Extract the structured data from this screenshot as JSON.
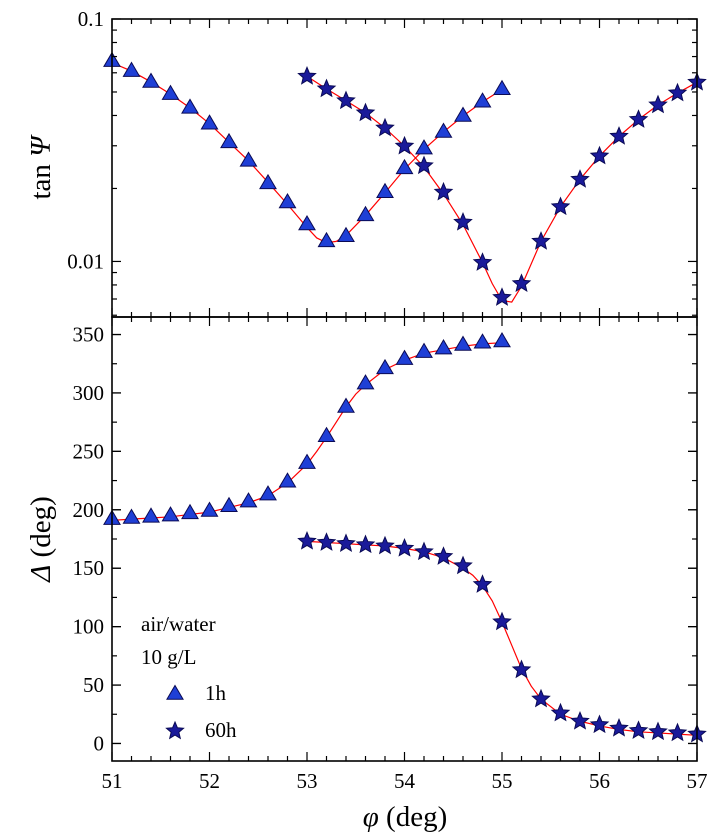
{
  "colors": {
    "marker_fill": "#1f3fd6",
    "marker_fill_star": "#1a1a9a",
    "marker_stroke": "#0a0a55",
    "fit_line": "#ff0000",
    "axis": "#000000"
  },
  "legend": {
    "header_line1": "air/water",
    "header_line2": "10 g/L",
    "entries": [
      {
        "label": "1h",
        "marker": "triangle-icon"
      },
      {
        "label": "60h",
        "marker": "star-icon"
      }
    ],
    "placement": "bottom-left"
  },
  "chart_data": [
    {
      "type": "scatter",
      "panel": "top",
      "ylabel_text": "tan ",
      "ylabel_symbol": "Ψ",
      "yscale": "log",
      "ylim": [
        0.0059,
        0.1
      ],
      "xlim": [
        51,
        57
      ],
      "y_ticks": [
        {
          "value": 0.01,
          "label": "0.01"
        },
        {
          "value": 0.1,
          "label": "0.1"
        }
      ],
      "grid": false,
      "series": [
        {
          "name": "1h",
          "marker": "triangle",
          "x": [
            51.0,
            51.2,
            51.4,
            51.6,
            51.8,
            52.0,
            52.2,
            52.4,
            52.6,
            52.8,
            53.0,
            53.2,
            53.4,
            53.6,
            53.8,
            54.0,
            54.2,
            54.4,
            54.6,
            54.8,
            55.0
          ],
          "y": [
            0.067,
            0.061,
            0.055,
            0.049,
            0.043,
            0.037,
            0.031,
            0.026,
            0.021,
            0.0175,
            0.0142,
            0.0121,
            0.0127,
            0.0155,
            0.0193,
            0.0242,
            0.0292,
            0.0342,
            0.0398,
            0.0456,
            0.0513
          ]
        },
        {
          "name": "60h",
          "marker": "star",
          "x": [
            53.0,
            53.2,
            53.4,
            53.6,
            53.8,
            54.0,
            54.2,
            54.4,
            54.6,
            54.8,
            55.0,
            55.2,
            55.4,
            55.6,
            55.8,
            56.0,
            56.2,
            56.4,
            56.6,
            56.8,
            57.0
          ],
          "y": [
            0.058,
            0.0515,
            0.046,
            0.041,
            0.0355,
            0.0299,
            0.0248,
            0.0193,
            0.0145,
            0.0099,
            0.0071,
            0.0081,
            0.0121,
            0.0168,
            0.0218,
            0.0272,
            0.0328,
            0.0385,
            0.0442,
            0.0495,
            0.0548
          ]
        }
      ],
      "fits": [
        {
          "for": "1h",
          "x": [
            51.0,
            51.2,
            51.4,
            51.6,
            51.8,
            52.0,
            52.2,
            52.4,
            52.6,
            52.8,
            53.0,
            53.1,
            53.2,
            53.3,
            53.4,
            53.6,
            53.8,
            54.0,
            54.2,
            54.4,
            54.6,
            54.8,
            55.0
          ],
          "y": [
            0.066,
            0.061,
            0.055,
            0.049,
            0.043,
            0.037,
            0.031,
            0.026,
            0.0212,
            0.0172,
            0.0138,
            0.0125,
            0.01195,
            0.0121,
            0.0128,
            0.0155,
            0.0192,
            0.024,
            0.029,
            0.0342,
            0.0398,
            0.0455,
            0.0512
          ]
        },
        {
          "for": "60h",
          "x": [
            53.0,
            53.2,
            53.4,
            53.6,
            53.8,
            54.0,
            54.2,
            54.4,
            54.6,
            54.8,
            54.9,
            55.0,
            55.1,
            55.2,
            55.4,
            55.6,
            55.8,
            56.0,
            56.2,
            56.4,
            56.6,
            56.8,
            57.0
          ],
          "y": [
            0.058,
            0.0515,
            0.046,
            0.041,
            0.0355,
            0.0299,
            0.0245,
            0.019,
            0.0142,
            0.0099,
            0.0081,
            0.0069,
            0.0068,
            0.0079,
            0.0121,
            0.0168,
            0.0218,
            0.0272,
            0.0328,
            0.0385,
            0.0442,
            0.0495,
            0.0548
          ]
        }
      ]
    },
    {
      "type": "scatter",
      "panel": "bottom",
      "ylabel_symbol": "Δ",
      "ylabel_text": " (deg)",
      "yscale": "linear",
      "ylim": [
        -15,
        365
      ],
      "xlim": [
        51,
        57
      ],
      "y_ticks": [
        {
          "value": 0,
          "label": "0"
        },
        {
          "value": 50,
          "label": "50"
        },
        {
          "value": 100,
          "label": "100"
        },
        {
          "value": 150,
          "label": "150"
        },
        {
          "value": 200,
          "label": "200"
        },
        {
          "value": 250,
          "label": "250"
        },
        {
          "value": 300,
          "label": "300"
        },
        {
          "value": 350,
          "label": "350"
        }
      ],
      "xlabel_symbol": "φ",
      "xlabel_text": " (deg)",
      "x_ticks": [
        {
          "value": 51,
          "label": "51"
        },
        {
          "value": 52,
          "label": "52"
        },
        {
          "value": 53,
          "label": "53"
        },
        {
          "value": 54,
          "label": "54"
        },
        {
          "value": 55,
          "label": "55"
        },
        {
          "value": 56,
          "label": "56"
        },
        {
          "value": 57,
          "label": "57"
        }
      ],
      "grid": false,
      "series": [
        {
          "name": "1h",
          "marker": "triangle",
          "x": [
            51.0,
            51.2,
            51.4,
            51.6,
            51.8,
            52.0,
            52.2,
            52.4,
            52.6,
            52.8,
            53.0,
            53.2,
            53.4,
            53.6,
            53.8,
            54.0,
            54.2,
            54.4,
            54.6,
            54.8,
            55.0
          ],
          "y": [
            192,
            193,
            194,
            195,
            197,
            199,
            203,
            207,
            213,
            224,
            240,
            263,
            288,
            308,
            321,
            329,
            335,
            338,
            341,
            343,
            344
          ]
        },
        {
          "name": "60h",
          "marker": "star",
          "x": [
            53.0,
            53.2,
            53.4,
            53.6,
            53.8,
            54.0,
            54.2,
            54.4,
            54.6,
            54.8,
            55.0,
            55.2,
            55.4,
            55.6,
            55.8,
            56.0,
            56.2,
            56.4,
            56.6,
            56.8,
            57.0
          ],
          "y": [
            173,
            172,
            171,
            170,
            169,
            167,
            164,
            160,
            152,
            136,
            104,
            63,
            38,
            26,
            19,
            16,
            13,
            11,
            10,
            9,
            8
          ]
        }
      ],
      "fits": [
        {
          "for": "1h",
          "x": [
            51.0,
            51.2,
            51.4,
            51.6,
            51.8,
            52.0,
            52.2,
            52.4,
            52.6,
            52.8,
            53.0,
            53.1,
            53.2,
            53.3,
            53.4,
            53.5,
            53.6,
            53.8,
            54.0,
            54.2,
            54.4,
            54.6,
            54.8,
            55.0
          ],
          "y": [
            191,
            192,
            193,
            194,
            196,
            198,
            202,
            206,
            212,
            223,
            239,
            250,
            262,
            275,
            288,
            299,
            307,
            320,
            328,
            334,
            337,
            340,
            342,
            343
          ]
        },
        {
          "for": "60h",
          "x": [
            53.0,
            53.2,
            53.4,
            53.6,
            53.8,
            54.0,
            54.2,
            54.4,
            54.6,
            54.7,
            54.8,
            54.9,
            55.0,
            55.1,
            55.2,
            55.3,
            55.4,
            55.6,
            55.8,
            56.0,
            56.2,
            56.4,
            56.6,
            56.8,
            57.0
          ],
          "y": [
            173,
            172,
            171,
            170,
            169,
            167,
            164,
            159,
            150,
            144,
            135,
            122,
            104,
            84,
            64,
            49,
            38,
            25,
            19,
            15,
            12,
            10,
            9,
            8,
            7
          ]
        }
      ]
    }
  ]
}
